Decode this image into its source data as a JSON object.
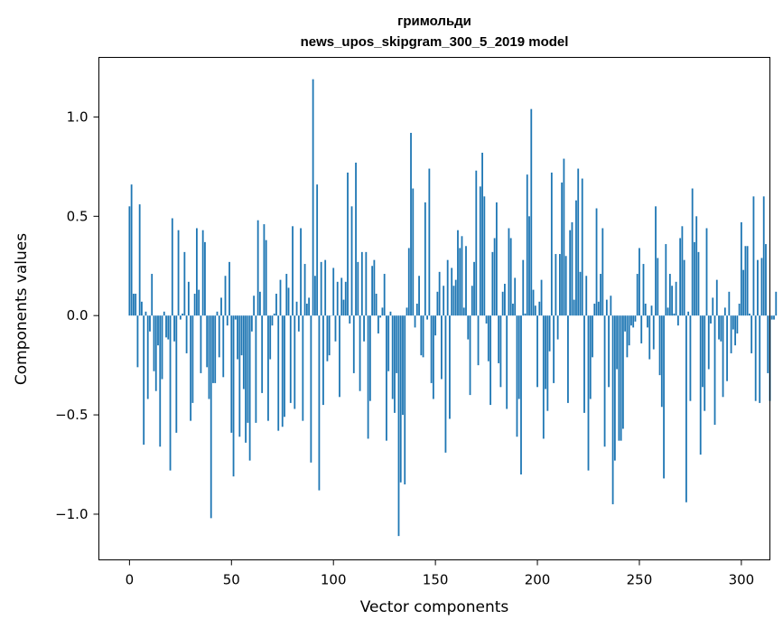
{
  "chart_data": {
    "type": "bar",
    "title": "гримольди",
    "subtitle": "news_upos_skipgram_300_5_2019 model",
    "xlabel": "Vector components",
    "ylabel": "Components values",
    "xlim": [
      -15,
      314
    ],
    "ylim": [
      -1.23,
      1.3
    ],
    "x_ticks": [
      0,
      50,
      100,
      150,
      200,
      250,
      300
    ],
    "x_tick_labels": [
      "0",
      "50",
      "100",
      "150",
      "200",
      "250",
      "300"
    ],
    "y_ticks": [
      -1.0,
      -0.5,
      0.0,
      0.5,
      1.0
    ],
    "y_tick_labels": [
      "−1.0",
      "−0.5",
      "0.0",
      "0.5",
      "1.0"
    ],
    "bar_color": "#1f77b4",
    "grid": false,
    "legend": "none",
    "values": [
      0.55,
      0.66,
      0.11,
      0.11,
      -0.26,
      0.56,
      0.07,
      -0.65,
      0.02,
      -0.42,
      -0.08,
      0.21,
      -0.28,
      -0.38,
      -0.15,
      -0.66,
      -0.32,
      0.02,
      -0.11,
      -0.12,
      -0.78,
      0.49,
      -0.13,
      -0.59,
      0.43,
      -0.02,
      0.01,
      0.32,
      -0.19,
      0.17,
      -0.53,
      -0.44,
      0.11,
      0.44,
      0.13,
      -0.29,
      0.43,
      0.37,
      -0.26,
      -0.42,
      -1.02,
      -0.34,
      -0.34,
      0.02,
      -0.21,
      0.09,
      -0.31,
      0.2,
      -0.05,
      0.27,
      -0.59,
      -0.81,
      -0.02,
      -0.22,
      -0.61,
      -0.2,
      -0.37,
      -0.64,
      -0.54,
      -0.73,
      -0.08,
      0.1,
      -0.54,
      0.48,
      0.12,
      -0.39,
      0.46,
      0.38,
      -0.53,
      -0.22,
      -0.05,
      0.01,
      0.11,
      -0.58,
      0.18,
      -0.56,
      -0.51,
      0.21,
      0.14,
      -0.44,
      0.45,
      -0.47,
      0.07,
      -0.08,
      0.44,
      -0.53,
      0.26,
      0.06,
      0.09,
      -0.74,
      1.19,
      0.2,
      0.66,
      -0.88,
      0.27,
      -0.45,
      0.28,
      -0.23,
      -0.2,
      0.0,
      0.24,
      -0.13,
      0.17,
      -0.41,
      0.19,
      0.08,
      0.17,
      0.72,
      -0.04,
      0.55,
      -0.29,
      0.77,
      0.27,
      -0.38,
      0.32,
      -0.13,
      0.32,
      -0.62,
      -0.43,
      0.25,
      0.28,
      0.11,
      -0.09,
      -0.01,
      0.04,
      0.21,
      -0.63,
      -0.28,
      0.02,
      -0.42,
      -0.49,
      -0.29,
      -1.11,
      -0.84,
      -0.5,
      -0.85,
      0.04,
      0.34,
      0.92,
      0.64,
      -0.06,
      0.06,
      0.2,
      -0.2,
      -0.21,
      0.57,
      -0.02,
      0.74,
      -0.34,
      -0.42,
      -0.1,
      0.12,
      0.22,
      -0.32,
      0.15,
      -0.69,
      0.28,
      -0.52,
      0.24,
      0.15,
      0.18,
      0.43,
      0.34,
      0.4,
      0.04,
      0.35,
      -0.12,
      -0.4,
      0.15,
      0.27,
      0.73,
      -0.25,
      0.65,
      0.82,
      0.6,
      -0.04,
      -0.23,
      -0.45,
      0.32,
      0.39,
      0.57,
      -0.24,
      -0.36,
      0.12,
      0.16,
      -0.47,
      0.44,
      0.39,
      0.06,
      0.19,
      -0.61,
      -0.42,
      -0.8,
      0.28,
      0.01,
      0.71,
      0.5,
      1.04,
      0.13,
      0.05,
      -0.36,
      0.07,
      0.18,
      -0.62,
      -0.37,
      -0.48,
      -0.18,
      0.72,
      -0.34,
      0.31,
      -0.12,
      0.31,
      0.67,
      0.79,
      0.3,
      -0.44,
      0.43,
      0.47,
      0.08,
      0.58,
      0.74,
      0.22,
      0.69,
      -0.49,
      0.2,
      -0.78,
      -0.42,
      -0.21,
      0.06,
      0.54,
      0.07,
      0.21,
      0.44,
      -0.66,
      0.08,
      -0.36,
      0.1,
      -0.95,
      -0.73,
      -0.27,
      -0.63,
      -0.63,
      -0.57,
      -0.08,
      -0.21,
      -0.15,
      -0.05,
      -0.06,
      -0.03,
      0.21,
      0.34,
      -0.14,
      0.26,
      0.06,
      -0.06,
      -0.22,
      0.05,
      -0.17,
      0.55,
      0.29,
      -0.3,
      -0.46,
      -0.82,
      0.36,
      0.04,
      0.21,
      0.15,
      0.01,
      0.17,
      -0.05,
      0.39,
      0.45,
      0.28,
      -0.94,
      0.02,
      -0.43,
      0.64,
      0.37,
      0.5,
      0.32,
      -0.7,
      -0.36,
      -0.48,
      0.44,
      -0.27,
      -0.04,
      0.09,
      -0.55,
      0.18,
      -0.12,
      -0.13,
      -0.41,
      0.04,
      -0.33,
      0.12,
      -0.19,
      -0.07,
      -0.15,
      -0.09,
      0.06,
      0.47,
      0.23,
      0.35,
      0.35,
      0.01,
      -0.19,
      0.6,
      -0.43,
      0.28,
      -0.44,
      0.29,
      0.6,
      0.36,
      -0.29,
      -0.43,
      -0.02,
      -0.02,
      0.12
    ]
  }
}
